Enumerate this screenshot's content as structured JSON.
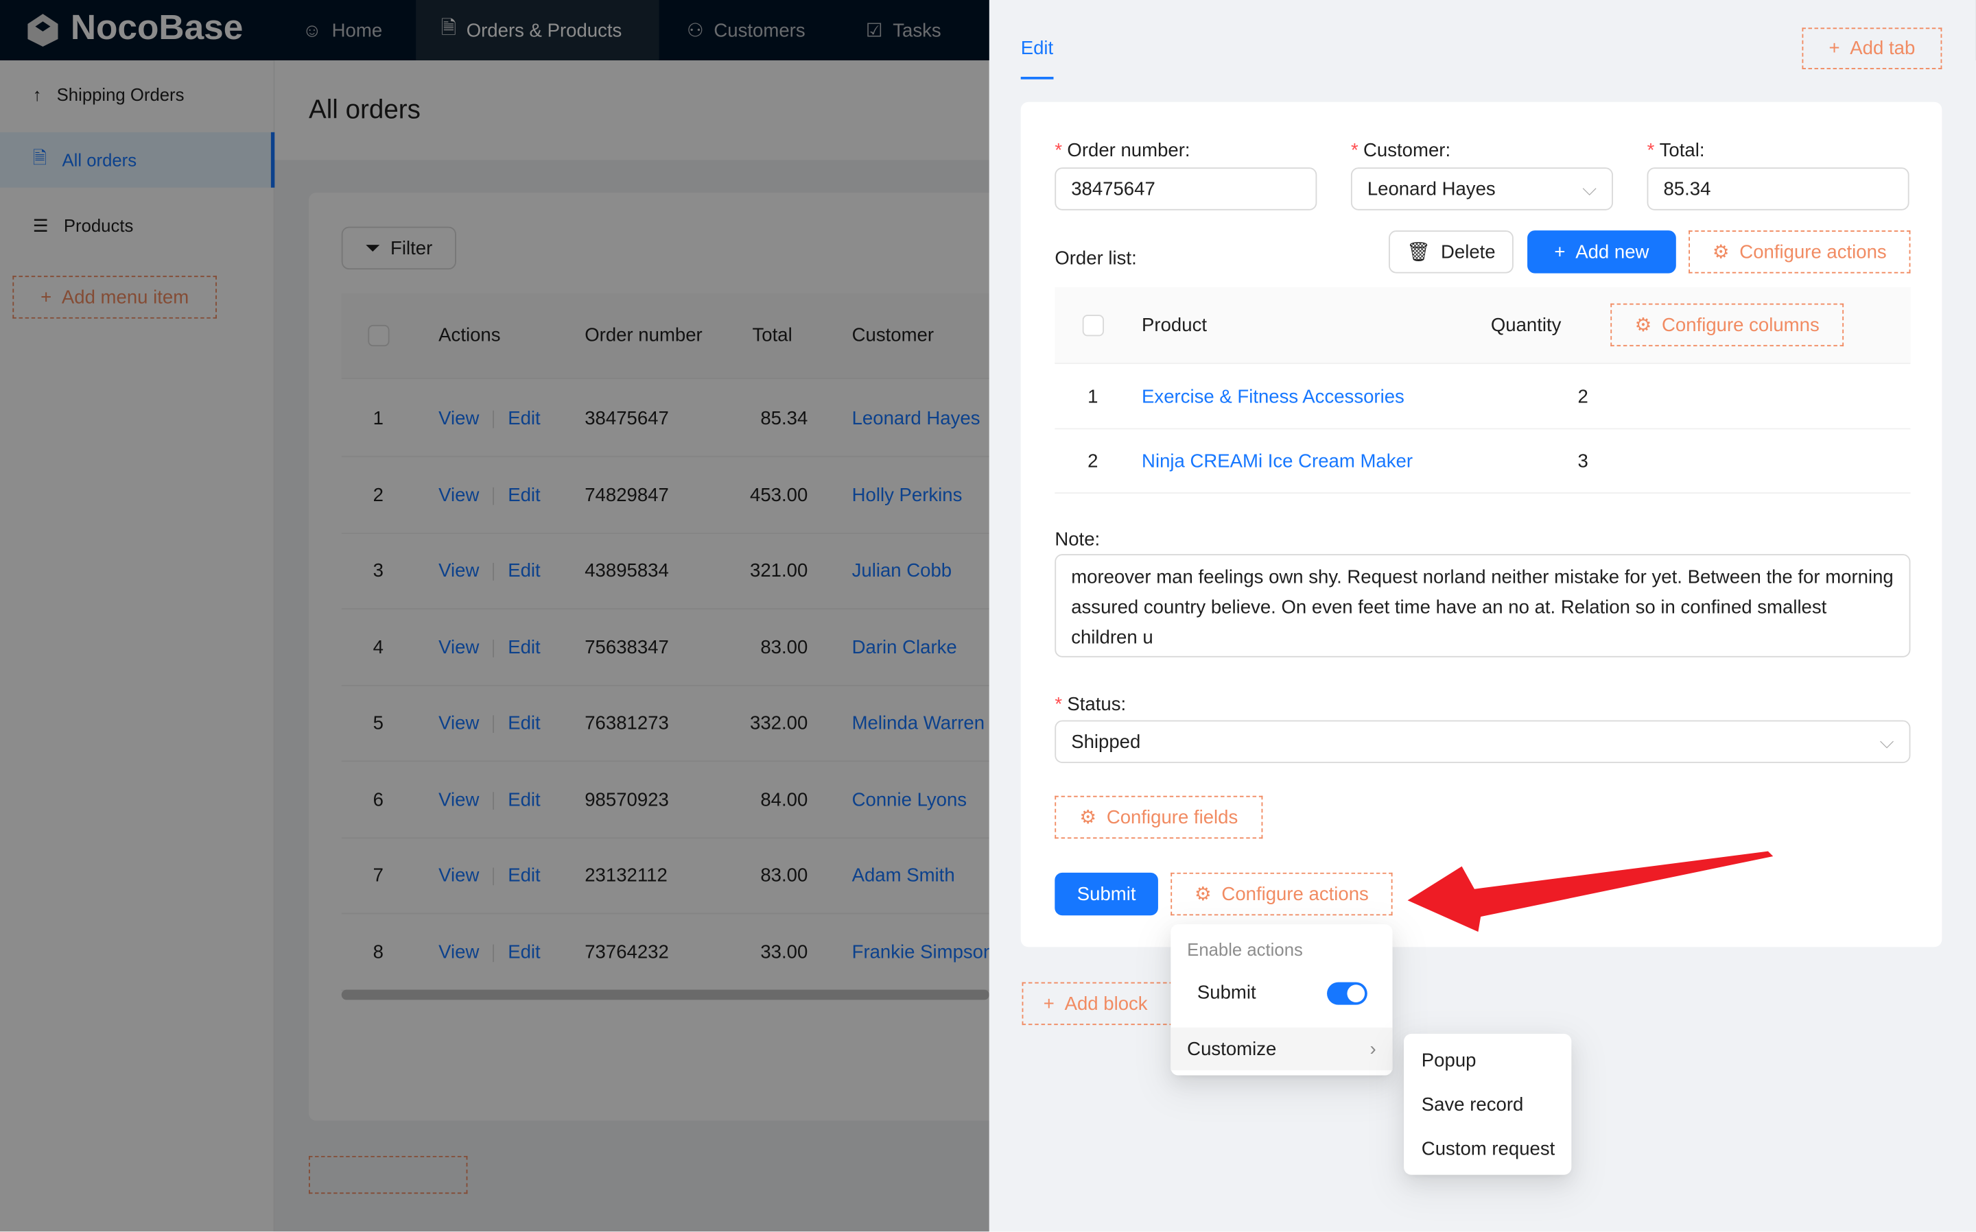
{
  "header": {
    "logo": "NocoBase",
    "nav": [
      {
        "label": "Home",
        "icon": "smile-icon"
      },
      {
        "label": "Orders & Products",
        "icon": "file-check-icon",
        "active": true
      },
      {
        "label": "Customers",
        "icon": "users-icon"
      },
      {
        "label": "Tasks",
        "icon": "checkbox-icon"
      }
    ]
  },
  "sidebar": {
    "items": [
      {
        "label": "Shipping Orders",
        "icon": "arrow-up-icon"
      },
      {
        "label": "All orders",
        "icon": "file-check-icon",
        "selected": true
      },
      {
        "label": "Products",
        "icon": "list-icon"
      }
    ],
    "add_label": "Add menu item"
  },
  "page": {
    "title": "All orders",
    "filter_label": "Filter",
    "table": {
      "columns": [
        "Actions",
        "Order number",
        "Total",
        "Customer"
      ],
      "view_label": "View",
      "edit_label": "Edit",
      "rows": [
        [
          "1",
          "38475647",
          "85.34",
          "Leonard Hayes"
        ],
        [
          "2",
          "74829847",
          "453.00",
          "Holly Perkins"
        ],
        [
          "3",
          "43895834",
          "321.00",
          "Julian Cobb"
        ],
        [
          "4",
          "75638347",
          "83.00",
          "Darin Clarke"
        ],
        [
          "5",
          "76381273",
          "332.00",
          "Melinda Warren"
        ],
        [
          "6",
          "98570923",
          "84.00",
          "Connie Lyons"
        ],
        [
          "7",
          "23132112",
          "83.00",
          "Adam Smith"
        ],
        [
          "8",
          "73764232",
          "33.00",
          "Frankie Simpson"
        ]
      ]
    }
  },
  "drawer": {
    "tab": "Edit",
    "add_tab": "Add tab",
    "fields": {
      "order_number_label": "Order number",
      "order_number": "38475647",
      "customer_label": "Customer",
      "customer": "Leonard Hayes",
      "total_label": "Total",
      "total": "85.34",
      "order_list_label": "Order list",
      "delete": "Delete",
      "add_new": "Add new",
      "configure_actions": "Configure actions",
      "sub_columns": [
        "Product",
        "Quantity"
      ],
      "configure_columns": "Configure columns",
      "sub_rows": [
        [
          "1",
          "Exercise & Fitness Accessories",
          "2"
        ],
        [
          "2",
          "Ninja CREAMi Ice Cream Maker",
          "3"
        ]
      ],
      "note_label": "Note",
      "note": "moreover man feelings own shy. Request norland neither mistake for yet. Between the for morning assured country believe. On even feet time have an no at. Relation so in confined smallest children u",
      "status_label": "Status",
      "status": "Shipped",
      "configure_fields": "Configure fields"
    },
    "submit": "Submit",
    "configure_actions": "Configure actions",
    "add_block": "Add block",
    "menu": {
      "group": "Enable actions",
      "submit_label": "Submit",
      "submit_enabled": true,
      "customize": "Customize",
      "submenu": [
        "Popup",
        "Save record",
        "Custom request"
      ]
    }
  },
  "colors": {
    "primary": "#1677ff",
    "dashed": "#f18b62",
    "header": "#001529",
    "arrow": "#ee1c25"
  }
}
